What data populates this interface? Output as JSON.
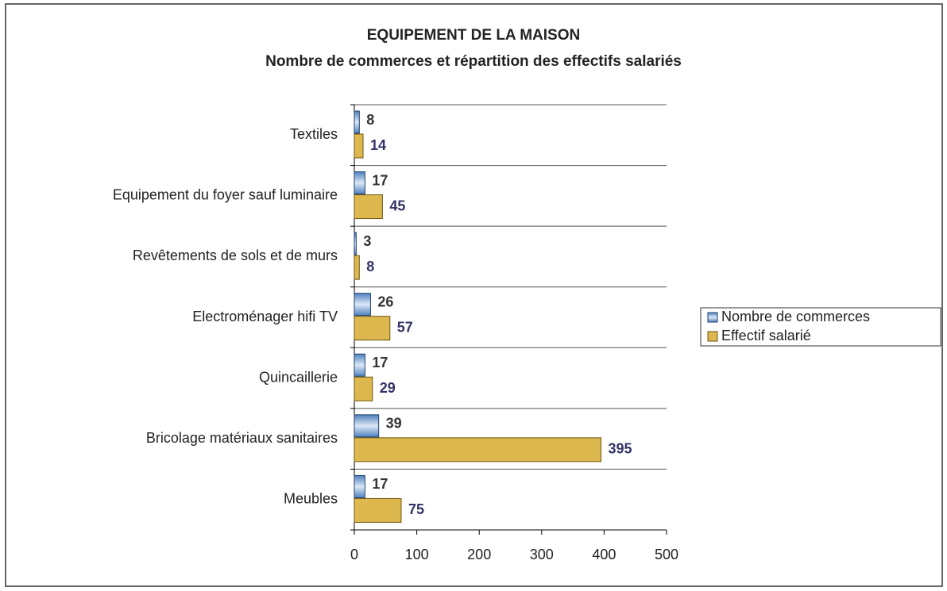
{
  "chart_data": {
    "type": "bar",
    "orientation": "horizontal",
    "title": "EQUIPEMENT DE LA MAISON",
    "subtitle": "Nombre de commerces et répartition des effectifs salariés",
    "categories": [
      "Textiles",
      "Equipement du foyer sauf luminaire",
      "Revêtements de sols et de murs",
      "Electroménager hifi TV",
      "Quincaillerie",
      "Bricolage matériaux sanitaires",
      "Meubles"
    ],
    "series": [
      {
        "name": "Nombre de commerces",
        "color": "#8db4e2",
        "values": [
          8,
          17,
          3,
          26,
          17,
          39,
          17
        ]
      },
      {
        "name": "Effectif salarié",
        "color": "#dcb84e",
        "values": [
          14,
          45,
          8,
          57,
          29,
          395,
          75
        ]
      }
    ],
    "xlim": [
      0,
      500
    ],
    "xticks": [
      0,
      100,
      200,
      300,
      400,
      500
    ],
    "legend": "right"
  }
}
